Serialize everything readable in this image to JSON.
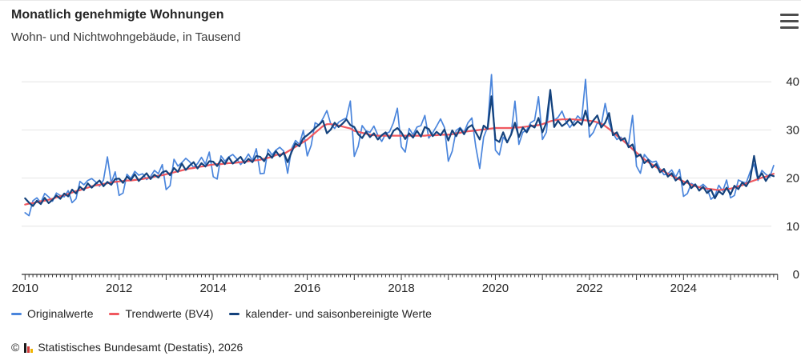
{
  "header": {
    "title": "Monatlich genehmigte Wohnungen",
    "subtitle": "Wohn- und Nichtwohngebäude, in Tausend"
  },
  "menu": {
    "icon": "hamburger-menu-icon"
  },
  "colors": {
    "original": "#4a85dc",
    "trend": "#f0585f",
    "seasonal": "#14427c",
    "grid": "#e4e4e4",
    "axis": "#333333",
    "text": "#262626"
  },
  "chart_data": {
    "type": "line",
    "title": "Monatlich genehmigte Wohnungen",
    "subtitle": "Wohn- und Nichtwohngebäude, in Tausend",
    "unit": "Tausend",
    "x_start": "2010-01",
    "x_end": "2025-12",
    "months_per_point": 1,
    "x_tick_labels": [
      "2010",
      "2012",
      "2014",
      "2016",
      "2018",
      "2020",
      "2022",
      "2024"
    ],
    "x_tick_month_index": [
      0,
      24,
      48,
      72,
      96,
      120,
      144,
      168
    ],
    "y_ticks": [
      0,
      10,
      20,
      30,
      40
    ],
    "ylim": [
      0,
      42
    ],
    "grid": true,
    "legend_position": "bottom",
    "series": [
      {
        "name": "Originalwerte",
        "color": "#4a85dc",
        "values": [
          12.8,
          12.2,
          15.3,
          15.9,
          14.9,
          16.8,
          16.1,
          15.2,
          16.9,
          16.4,
          16.1,
          17.4,
          14.9,
          15.7,
          19.3,
          18.6,
          19.5,
          19.9,
          19.2,
          18.3,
          19.6,
          24.4,
          19.0,
          21.3,
          16.4,
          16.9,
          20.8,
          19.9,
          21.4,
          20.6,
          20.9,
          19.7,
          20.3,
          21.6,
          20.9,
          22.8,
          17.6,
          18.4,
          23.9,
          22.5,
          23.2,
          24.1,
          23.4,
          22.2,
          23.0,
          24.3,
          22.9,
          25.4,
          20.3,
          19.8,
          24.6,
          23.5,
          24.4,
          24.9,
          24.0,
          22.8,
          23.7,
          25.0,
          23.6,
          26.1,
          20.9,
          21.0,
          26.0,
          24.8,
          25.8,
          26.4,
          25.6,
          21.0,
          26.1,
          27.8,
          27.0,
          29.9,
          24.6,
          26.8,
          31.5,
          31.0,
          32.4,
          34.0,
          31.2,
          30.3,
          31.6,
          32.1,
          32.5,
          36.0,
          24.5,
          26.6,
          30.9,
          29.8,
          29.5,
          30.8,
          28.9,
          27.6,
          29.2,
          29.6,
          31.5,
          34.5,
          26.5,
          25.4,
          30.3,
          29.0,
          30.6,
          30.9,
          33.0,
          28.3,
          29.4,
          30.8,
          32.3,
          30.5,
          23.5,
          25.6,
          29.9,
          30.5,
          29.5,
          31.5,
          32.5,
          26.5,
          22.0,
          28.5,
          30.6,
          41.5,
          25.8,
          24.8,
          28.5,
          27.5,
          29.0,
          36.0,
          27.0,
          29.5,
          30.0,
          31.5,
          32.0,
          36.9,
          28.0,
          29.5,
          37.5,
          32.0,
          32.6,
          33.9,
          31.8,
          30.5,
          31.6,
          32.9,
          32.1,
          40.5,
          28.5,
          29.5,
          31.5,
          31.0,
          35.5,
          31.5,
          29.3,
          28.0,
          28.5,
          27.5,
          27.1,
          33.0,
          22.5,
          21.0,
          24.9,
          23.9,
          23.3,
          23.5,
          21.9,
          20.7,
          20.9,
          21.7,
          20.2,
          21.8,
          16.2,
          16.8,
          18.9,
          18.4,
          18.1,
          18.7,
          17.9,
          15.6,
          16.3,
          18.5,
          17.3,
          19.6,
          15.9,
          16.4,
          19.6,
          19.2,
          19.0,
          21.3,
          22.9,
          19.5,
          21.6,
          20.8,
          20.2,
          22.6
        ]
      },
      {
        "name": "Trendwerte (BV4)",
        "color": "#f0585f",
        "values": [
          14.5,
          14.7,
          14.8,
          15.0,
          15.2,
          15.3,
          15.5,
          15.7,
          16.0,
          16.2,
          16.5,
          16.7,
          17.0,
          17.3,
          17.5,
          17.8,
          18.0,
          18.3,
          18.5,
          18.6,
          18.8,
          18.9,
          19.1,
          19.2,
          19.3,
          19.4,
          19.5,
          19.5,
          19.6,
          19.7,
          19.8,
          20.0,
          20.1,
          20.3,
          20.5,
          20.6,
          20.8,
          21.0,
          21.2,
          21.4,
          21.6,
          21.8,
          22.0,
          22.1,
          22.3,
          22.4,
          22.5,
          22.7,
          22.8,
          22.9,
          22.9,
          23.0,
          23.1,
          23.1,
          23.2,
          23.3,
          23.4,
          23.5,
          23.6,
          23.7,
          23.8,
          24.0,
          24.2,
          24.4,
          24.8,
          24.9,
          25.0,
          25.5,
          26.0,
          26.5,
          27.0,
          27.5,
          28.0,
          28.7,
          29.4,
          30.1,
          30.8,
          31.2,
          31.2,
          31.1,
          30.9,
          30.7,
          30.5,
          30.3,
          29.8,
          29.6,
          29.4,
          29.2,
          29.0,
          28.9,
          28.8,
          28.8,
          28.8,
          28.8,
          28.8,
          28.8,
          28.8,
          28.8,
          28.8,
          28.8,
          28.8,
          28.8,
          28.8,
          28.9,
          28.9,
          28.9,
          29.0,
          29.0,
          29.0,
          29.1,
          29.3,
          29.4,
          29.6,
          29.7,
          29.8,
          29.9,
          30.0,
          30.1,
          30.2,
          30.3,
          30.4,
          30.4,
          30.4,
          30.4,
          30.4,
          30.5,
          30.5,
          30.6,
          30.7,
          30.8,
          30.9,
          31.0,
          31.2,
          31.5,
          31.8,
          32.0,
          32.1,
          32.2,
          32.2,
          32.2,
          32.2,
          32.1,
          32.1,
          32.0,
          31.9,
          31.8,
          31.6,
          31.3,
          30.8,
          30.2,
          29.5,
          28.8,
          28.2,
          27.5,
          26.8,
          26.0,
          25.3,
          24.6,
          23.9,
          23.3,
          22.8,
          22.3,
          21.8,
          21.4,
          20.9,
          20.5,
          20.1,
          19.7,
          19.3,
          19.0,
          18.6,
          18.3,
          18.1,
          17.9,
          17.8,
          17.7,
          17.6,
          17.5,
          17.6,
          17.7,
          17.8,
          18.0,
          18.3,
          18.5,
          18.9,
          19.2,
          19.5,
          19.8,
          20.1,
          20.3,
          20.6,
          20.9
        ]
      },
      {
        "name": "kalender- und saisonbereinigte Werte",
        "color": "#14427c",
        "values": [
          15.8,
          14.9,
          14.2,
          15.3,
          14.6,
          15.9,
          14.8,
          15.5,
          16.4,
          15.7,
          16.8,
          16.2,
          17.6,
          16.8,
          18.2,
          17.5,
          18.9,
          18.0,
          18.8,
          19.5,
          18.3,
          19.2,
          18.6,
          19.8,
          19.9,
          19.0,
          20.3,
          19.6,
          20.8,
          19.4,
          20.2,
          21.0,
          19.8,
          20.7,
          20.1,
          21.2,
          21.5,
          20.6,
          22.1,
          21.3,
          23.0,
          21.7,
          22.6,
          23.3,
          22.0,
          23.1,
          22.4,
          23.5,
          23.4,
          22.5,
          23.8,
          22.9,
          24.3,
          23.0,
          23.7,
          24.4,
          23.1,
          24.0,
          23.3,
          24.6,
          24.4,
          23.5,
          25.1,
          24.2,
          25.6,
          24.5,
          25.3,
          23.3,
          25.4,
          27.2,
          26.6,
          28.3,
          28.9,
          29.6,
          30.4,
          31.1,
          31.9,
          29.3,
          30.1,
          31.5,
          30.6,
          31.3,
          32.2,
          31.0,
          30.6,
          29.1,
          28.3,
          29.6,
          28.5,
          29.3,
          28.0,
          28.9,
          29.5,
          28.2,
          29.8,
          30.4,
          29.5,
          28.1,
          29.3,
          28.4,
          29.8,
          28.6,
          30.6,
          30.2,
          28.7,
          29.6,
          28.9,
          30.1,
          27.8,
          29.9,
          28.7,
          30.3,
          29.1,
          30.5,
          31.0,
          29.5,
          28.0,
          30.9,
          30.2,
          37.0,
          28.0,
          27.5,
          29.5,
          27.4,
          29.0,
          31.5,
          28.5,
          30.5,
          29.5,
          31.0,
          30.5,
          32.5,
          29.5,
          31.5,
          38.3,
          30.6,
          31.9,
          30.8,
          31.4,
          32.3,
          30.9,
          31.8,
          31.1,
          34.0,
          30.8,
          32.0,
          33.0,
          30.5,
          31.5,
          33.5,
          28.9,
          29.5,
          27.8,
          28.3,
          26.4,
          27.0,
          24.4,
          24.9,
          23.1,
          23.8,
          22.2,
          22.9,
          21.2,
          21.9,
          20.3,
          21.0,
          19.5,
          20.2,
          18.6,
          19.5,
          17.9,
          18.7,
          17.4,
          18.2,
          16.9,
          17.6,
          15.8,
          17.3,
          16.6,
          18.0,
          16.6,
          18.4,
          17.7,
          19.1,
          18.3,
          19.7,
          24.6,
          19.9,
          21.0,
          19.4,
          20.7,
          20.4
        ]
      }
    ]
  },
  "legend": {
    "items": [
      {
        "label": "Originalwerte",
        "color": "#4a85dc"
      },
      {
        "label": "Trendwerte (BV4)",
        "color": "#f0585f"
      },
      {
        "label": "kalender- und saisonbereinigte Werte",
        "color": "#14427c"
      }
    ]
  },
  "footer": {
    "copyright": "©",
    "logo": "destatis-logo-icon",
    "source": "Statistisches Bundesamt (Destatis), 2026"
  }
}
